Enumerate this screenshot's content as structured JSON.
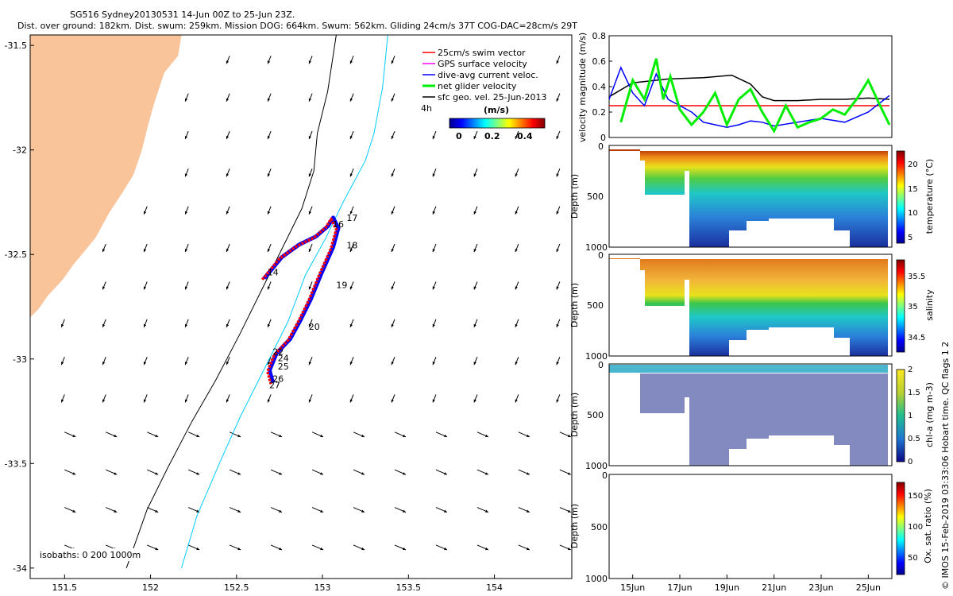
{
  "header": {
    "line1": "SG516 Sydney20130531 14-Jun 00Z to 25-Jun 23Z.",
    "line2": "Dist. over ground: 182km. Dist. swum: 259km. Mission DOG: 664km. Swum: 562km. Gliding 24cm/s 37T COG-DAC=28cm/s 29T"
  },
  "footer": "© IMOS 15-Feb-2019 03:33:06 Hobart time. QC flags 1  2",
  "colors": {
    "land": "#f9c49a",
    "glider_track": "#ff0000",
    "dive_avg_current": "#0000ff",
    "net_glider_velocity": "#00ee00",
    "isobath_0": "#000000",
    "isobath_200": "#00ccff",
    "sfc_geo": "#000000"
  },
  "chart_data": [
    {
      "id": "map",
      "type": "scatter",
      "title": "",
      "xlabel": "",
      "ylabel": "",
      "xlim": [
        151.3,
        154.45
      ],
      "ylim": [
        -34.05,
        -31.45
      ],
      "x_ticks": [
        "151.5",
        "152",
        "152.5",
        "153",
        "153.5",
        "154"
      ],
      "y_ticks": [
        "-31.5",
        "-32",
        "-32.5",
        "-33",
        "-33.5",
        "-34"
      ],
      "legend": {
        "placement": "top-right",
        "entries": [
          "25cm/s swim vector",
          "GPS surface velocity",
          "dive-avg current veloc.",
          "net glider velocity",
          "sfc geo. vel. 25-Jun-2013"
        ],
        "colorbar_title": "(m/s)",
        "colorbar_ticks": [
          "0",
          "0.2",
          "0.4"
        ],
        "extra_label": "4h"
      },
      "isobaths_label": "isobaths: 0   200   1000m",
      "track": [
        [
          152.65,
          -32.62
        ],
        [
          152.75,
          -32.52
        ],
        [
          152.85,
          -32.46
        ],
        [
          152.95,
          -32.42
        ],
        [
          153.02,
          -32.37
        ],
        [
          153.05,
          -32.33
        ],
        [
          153.08,
          -32.38
        ],
        [
          153.05,
          -32.47
        ],
        [
          152.98,
          -32.6
        ],
        [
          152.92,
          -32.72
        ],
        [
          152.86,
          -32.82
        ],
        [
          152.8,
          -32.91
        ],
        [
          152.72,
          -32.98
        ],
        [
          152.68,
          -33.06
        ],
        [
          152.7,
          -33.12
        ]
      ],
      "day_labels": [
        {
          "text": "14",
          "lon": 152.68,
          "lat": -32.6
        },
        {
          "text": "16",
          "lon": 153.06,
          "lat": -32.37
        },
        {
          "text": "17",
          "lon": 153.14,
          "lat": -32.34
        },
        {
          "text": "18",
          "lon": 153.14,
          "lat": -32.47
        },
        {
          "text": "19",
          "lon": 153.08,
          "lat": -32.66
        },
        {
          "text": "20",
          "lon": 152.92,
          "lat": -32.86
        },
        {
          "text": "22",
          "lon": 152.71,
          "lat": -32.98
        },
        {
          "text": "24",
          "lon": 152.74,
          "lat": -33.01
        },
        {
          "text": "25",
          "lon": 152.74,
          "lat": -33.05
        },
        {
          "text": "26",
          "lon": 152.71,
          "lat": -33.11
        },
        {
          "text": "27",
          "lon": 152.69,
          "lat": -33.14
        }
      ],
      "coastline": [
        [
          152.18,
          -31.45
        ],
        [
          152.16,
          -31.55
        ],
        [
          152.08,
          -31.63
        ],
        [
          152.02,
          -31.78
        ],
        [
          151.98,
          -31.9
        ],
        [
          151.95,
          -32.0
        ],
        [
          151.9,
          -32.12
        ],
        [
          151.84,
          -32.2
        ],
        [
          151.76,
          -32.3
        ],
        [
          151.68,
          -32.42
        ],
        [
          151.6,
          -32.5
        ],
        [
          151.55,
          -32.55
        ],
        [
          151.49,
          -32.62
        ],
        [
          151.4,
          -32.7
        ],
        [
          151.35,
          -32.76
        ],
        [
          151.3,
          -32.8
        ]
      ],
      "isobath_0": [
        [
          153.08,
          -31.45
        ],
        [
          153.03,
          -31.72
        ],
        [
          152.97,
          -31.92
        ],
        [
          152.95,
          -32.1
        ],
        [
          152.88,
          -32.28
        ],
        [
          152.76,
          -32.48
        ],
        [
          152.64,
          -32.68
        ],
        [
          152.52,
          -32.88
        ],
        [
          152.38,
          -33.1
        ],
        [
          152.24,
          -33.3
        ],
        [
          152.1,
          -33.52
        ],
        [
          151.98,
          -33.72
        ],
        [
          151.86,
          -34.0
        ]
      ],
      "isobath_200": [
        [
          153.38,
          -31.45
        ],
        [
          153.35,
          -31.7
        ],
        [
          153.3,
          -31.92
        ],
        [
          153.25,
          -32.05
        ],
        [
          153.12,
          -32.25
        ],
        [
          153.02,
          -32.42
        ],
        [
          152.9,
          -32.6
        ],
        [
          152.8,
          -32.82
        ],
        [
          152.66,
          -33.05
        ],
        [
          152.52,
          -33.28
        ],
        [
          152.4,
          -33.5
        ],
        [
          152.27,
          -33.75
        ],
        [
          152.18,
          -34.0
        ]
      ]
    },
    {
      "id": "velocity",
      "type": "line",
      "title": "",
      "xlabel": "",
      "ylabel": "velocity magnitude (m/s)",
      "xlim": [
        14.0,
        26.0
      ],
      "ylim": [
        0,
        0.8
      ],
      "y_ticks": [
        "0",
        "0.2",
        "0.4",
        "0.6",
        "0.8"
      ],
      "series": [
        {
          "name": "",
          "color": "#000000",
          "x": [
            14.0,
            15.0,
            16.5,
            18.0,
            19.2,
            20.0,
            20.5,
            21.0,
            22.0,
            23.0,
            24.0,
            25.0,
            25.9
          ],
          "y": [
            0.32,
            0.43,
            0.46,
            0.47,
            0.49,
            0.42,
            0.32,
            0.29,
            0.29,
            0.3,
            0.3,
            0.31,
            0.3
          ]
        },
        {
          "name": "",
          "color": "#ff0000",
          "x": [
            14.0,
            25.9
          ],
          "y": [
            0.25,
            0.25
          ]
        },
        {
          "name": "",
          "color": "#0000ff",
          "x": [
            14.0,
            14.5,
            15.0,
            15.5,
            16.0,
            16.5,
            17.0,
            17.5,
            18.0,
            18.5,
            19.0,
            19.5,
            20.0,
            20.5,
            21.0,
            22.0,
            23.0,
            24.0,
            25.0,
            25.9
          ],
          "y": [
            0.3,
            0.55,
            0.35,
            0.25,
            0.5,
            0.3,
            0.25,
            0.2,
            0.12,
            0.1,
            0.08,
            0.1,
            0.13,
            0.12,
            0.09,
            0.12,
            0.15,
            0.12,
            0.2,
            0.33
          ]
        },
        {
          "name": "",
          "color": "#00ee00",
          "x": [
            14.5,
            15.0,
            15.5,
            16.0,
            16.3,
            16.6,
            17.0,
            17.5,
            18.0,
            18.5,
            19.0,
            19.5,
            20.0,
            20.5,
            21.0,
            21.5,
            22.0,
            22.5,
            23.0,
            23.5,
            24.0,
            24.5,
            25.0,
            25.5,
            25.9
          ],
          "y": [
            0.12,
            0.45,
            0.3,
            0.62,
            0.3,
            0.48,
            0.22,
            0.1,
            0.2,
            0.35,
            0.1,
            0.3,
            0.38,
            0.2,
            0.05,
            0.25,
            0.08,
            0.12,
            0.15,
            0.22,
            0.18,
            0.3,
            0.45,
            0.25,
            0.1
          ]
        }
      ]
    },
    {
      "id": "temperature",
      "type": "heatmap",
      "title": "",
      "xlabel": "",
      "ylabel": "Depth (m)",
      "ylim": [
        1000,
        0
      ],
      "y_ticks": [
        "0",
        "500",
        "1000"
      ],
      "colorbar_label": "temperature (°C)",
      "colorbar_ticks": [
        "5",
        "10",
        "15",
        "20"
      ],
      "value_range": [
        4,
        22
      ]
    },
    {
      "id": "salinity",
      "type": "heatmap",
      "title": "",
      "xlabel": "",
      "ylabel": "Depth (m)",
      "ylim": [
        1000,
        0
      ],
      "y_ticks": [
        "0",
        "500",
        "1000"
      ],
      "colorbar_label": "salinity",
      "colorbar_ticks": [
        "34.5",
        "35",
        "35.5"
      ],
      "value_range": [
        34.3,
        35.7
      ]
    },
    {
      "id": "chla",
      "type": "scatter",
      "title": "",
      "xlabel": "",
      "ylabel": "Depth (m)",
      "ylim": [
        1000,
        0
      ],
      "y_ticks": [
        "0",
        "500",
        "1000"
      ],
      "colorbar_label": "chl-a (mg m-3)",
      "colorbar_ticks": [
        "0",
        "0.5",
        "1",
        "1.5",
        "2"
      ],
      "value_range": [
        0,
        2
      ]
    },
    {
      "id": "oxygen",
      "type": "heatmap",
      "title": "",
      "xlabel": "",
      "ylabel": "Depth (m)",
      "ylim": [
        1000,
        0
      ],
      "y_ticks": [
        "0",
        "500",
        "1000"
      ],
      "x_ticks": [
        "15Jun",
        "17Jun",
        "19Jun",
        "21Jun",
        "23Jun",
        "25Jun"
      ],
      "colorbar_label": "Ox. sat. ratio (%)",
      "colorbar_ticks": [
        "50",
        "100",
        "150"
      ],
      "value_range": [
        20,
        170
      ]
    }
  ]
}
